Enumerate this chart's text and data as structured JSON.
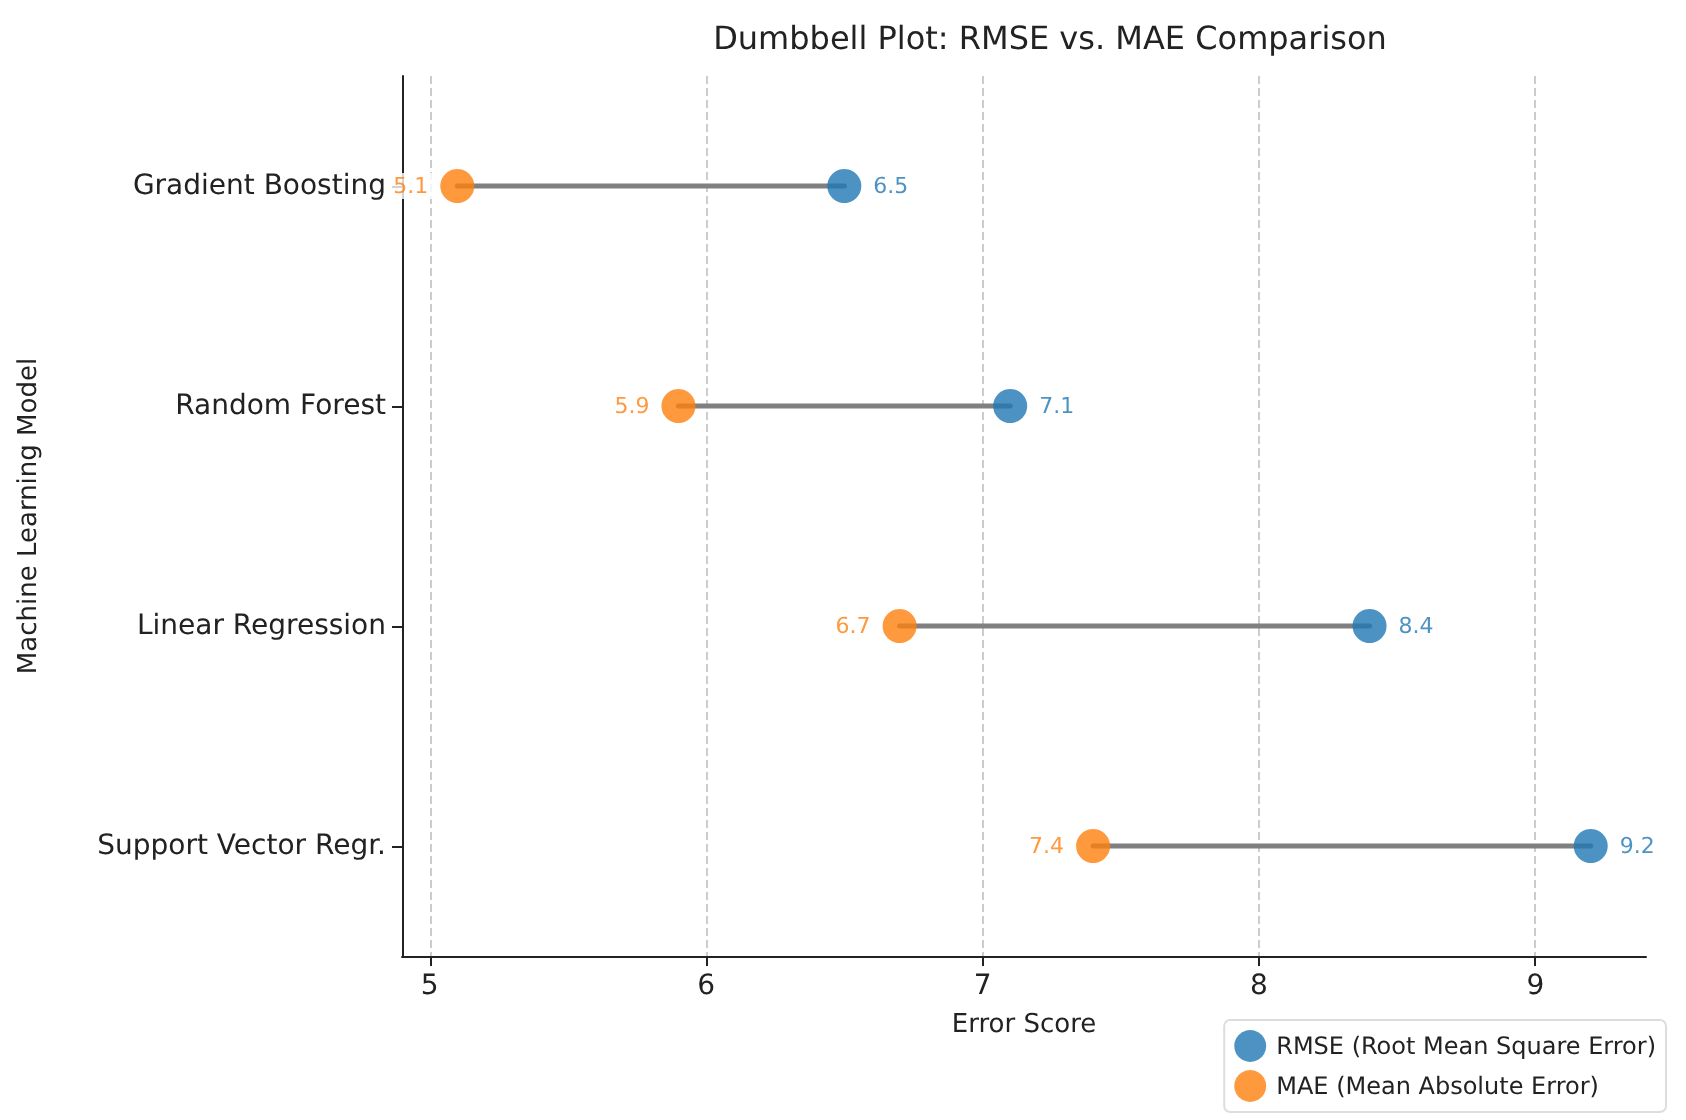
{
  "chart_data": {
    "type": "scatter",
    "title": "Dumbbell Plot: RMSE vs. MAE Comparison",
    "xlabel": "Error Score",
    "ylabel": "Machine Learning Model",
    "orientation": "horizontal",
    "categories": [
      "Gradient Boosting",
      "Random Forest",
      "Linear Regression",
      "Support Vector Regr."
    ],
    "series": [
      {
        "name": "RMSE (Root Mean Square Error)",
        "color": "#1f77b4",
        "values": [
          6.5,
          7.1,
          8.4,
          9.2
        ]
      },
      {
        "name": "MAE (Mean Absolute Error)",
        "color": "#ff7f0e",
        "values": [
          5.1,
          5.9,
          6.7,
          7.4
        ]
      }
    ],
    "xlim": [
      4.9,
      9.4
    ],
    "xticks": [
      5,
      6,
      7,
      8,
      9
    ],
    "grid": "x",
    "legend": "bottom right",
    "marker": "circle",
    "data_labels": true
  }
}
